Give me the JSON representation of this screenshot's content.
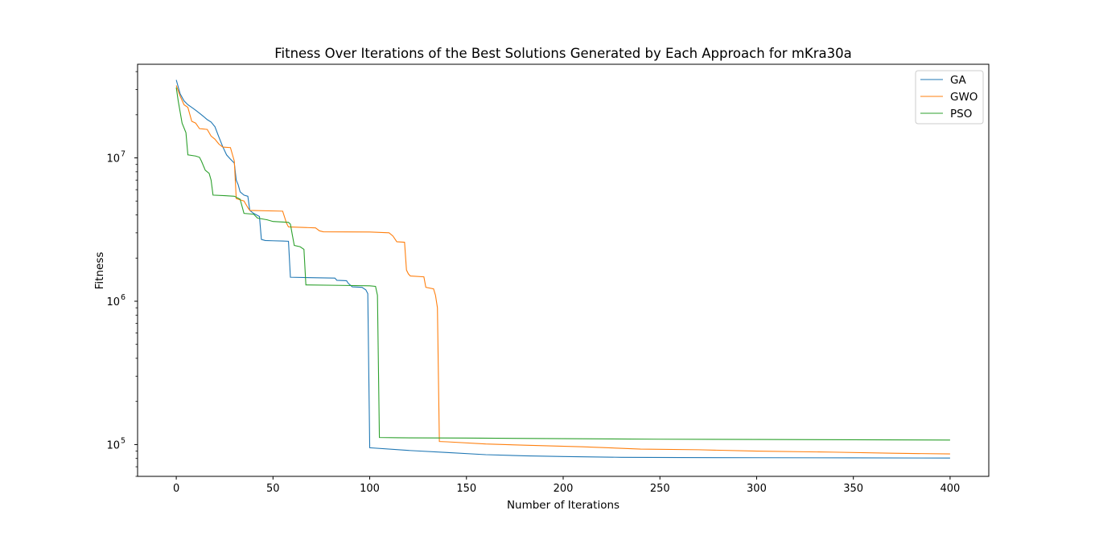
{
  "chart_data": {
    "type": "line",
    "title": "Fitness Over Iterations of the Best Solutions Generated by Each Approach for mKra30a",
    "xlabel": "Number of Iterations",
    "ylabel": "Fitness",
    "xlim": [
      -20,
      420
    ],
    "ylim": [
      60000,
      45000000
    ],
    "yscale": "log",
    "xticks": [
      0,
      50,
      100,
      150,
      200,
      250,
      300,
      350,
      400
    ],
    "xtick_labels": [
      "0",
      "50",
      "100",
      "150",
      "200",
      "250",
      "300",
      "350",
      "400"
    ],
    "yticks": [
      100000,
      1000000,
      10000000
    ],
    "ytick_labels": [
      {
        "base": "10",
        "exp": "5"
      },
      {
        "base": "10",
        "exp": "6"
      },
      {
        "base": "10",
        "exp": "7"
      }
    ],
    "grid": false,
    "legend": "top-right",
    "series": [
      {
        "name": "GA",
        "color": "#1f77b4",
        "points": [
          [
            0,
            35000000
          ],
          [
            2,
            28000000
          ],
          [
            4,
            25000000
          ],
          [
            6,
            23500000
          ],
          [
            8,
            22500000
          ],
          [
            10,
            21500000
          ],
          [
            12,
            20500000
          ],
          [
            14,
            19500000
          ],
          [
            16,
            18500000
          ],
          [
            18,
            17800000
          ],
          [
            20,
            16500000
          ],
          [
            22,
            14000000
          ],
          [
            24,
            12000000
          ],
          [
            26,
            10500000
          ],
          [
            28,
            9800000
          ],
          [
            30,
            9200000
          ],
          [
            31,
            7000000
          ],
          [
            32,
            6500000
          ],
          [
            33,
            5800000
          ],
          [
            35,
            5500000
          ],
          [
            37,
            5400000
          ],
          [
            38,
            4300000
          ],
          [
            40,
            4100000
          ],
          [
            43,
            3900000
          ],
          [
            44,
            2700000
          ],
          [
            46,
            2650000
          ],
          [
            50,
            2640000
          ],
          [
            55,
            2630000
          ],
          [
            58,
            2620000
          ],
          [
            59,
            1470000
          ],
          [
            70,
            1460000
          ],
          [
            82,
            1450000
          ],
          [
            83,
            1400000
          ],
          [
            88,
            1390000
          ],
          [
            89,
            1330000
          ],
          [
            91,
            1260000
          ],
          [
            96,
            1250000
          ],
          [
            98,
            1200000
          ],
          [
            99,
            1130000
          ],
          [
            100,
            95000
          ],
          [
            120,
            91000
          ],
          [
            140,
            88000
          ],
          [
            160,
            85000
          ],
          [
            180,
            83500
          ],
          [
            200,
            82500
          ],
          [
            230,
            81500
          ],
          [
            260,
            81200
          ],
          [
            300,
            81000
          ],
          [
            350,
            80800
          ],
          [
            400,
            80500
          ]
        ]
      },
      {
        "name": "GWO",
        "color": "#ff7f0e",
        "points": [
          [
            0,
            32000000
          ],
          [
            2,
            27000000
          ],
          [
            4,
            23500000
          ],
          [
            6,
            22500000
          ],
          [
            8,
            18000000
          ],
          [
            10,
            17500000
          ],
          [
            12,
            16000000
          ],
          [
            16,
            15800000
          ],
          [
            18,
            14200000
          ],
          [
            20,
            13500000
          ],
          [
            22,
            12500000
          ],
          [
            24,
            11900000
          ],
          [
            28,
            11800000
          ],
          [
            30,
            9500000
          ],
          [
            31,
            5200000
          ],
          [
            33,
            5100000
          ],
          [
            35,
            5000000
          ],
          [
            37,
            4500000
          ],
          [
            38,
            4300000
          ],
          [
            55,
            4250000
          ],
          [
            57,
            3500000
          ],
          [
            58,
            3300000
          ],
          [
            72,
            3250000
          ],
          [
            74,
            3100000
          ],
          [
            76,
            3050000
          ],
          [
            100,
            3040000
          ],
          [
            110,
            3000000
          ],
          [
            112,
            2850000
          ],
          [
            114,
            2600000
          ],
          [
            118,
            2580000
          ],
          [
            119,
            1650000
          ],
          [
            120,
            1550000
          ],
          [
            121,
            1500000
          ],
          [
            128,
            1480000
          ],
          [
            129,
            1250000
          ],
          [
            133,
            1220000
          ],
          [
            134,
            1100000
          ],
          [
            135,
            900000
          ],
          [
            136,
            105000
          ],
          [
            140,
            104500
          ],
          [
            160,
            101000
          ],
          [
            180,
            99000
          ],
          [
            210,
            96500
          ],
          [
            240,
            93000
          ],
          [
            270,
            92000
          ],
          [
            300,
            90000
          ],
          [
            340,
            88500
          ],
          [
            370,
            87000
          ],
          [
            400,
            86000
          ]
        ]
      },
      {
        "name": "PSO",
        "color": "#2ca02c",
        "points": [
          [
            0,
            31000000
          ],
          [
            1,
            25000000
          ],
          [
            3,
            17500000
          ],
          [
            5,
            15000000
          ],
          [
            6,
            10500000
          ],
          [
            10,
            10300000
          ],
          [
            12,
            10100000
          ],
          [
            13,
            9500000
          ],
          [
            15,
            8200000
          ],
          [
            17,
            7800000
          ],
          [
            18,
            7000000
          ],
          [
            19,
            5500000
          ],
          [
            25,
            5450000
          ],
          [
            30,
            5400000
          ],
          [
            33,
            5150000
          ],
          [
            35,
            4100000
          ],
          [
            40,
            4050000
          ],
          [
            42,
            3800000
          ],
          [
            47,
            3700000
          ],
          [
            50,
            3600000
          ],
          [
            58,
            3550000
          ],
          [
            59,
            3450000
          ],
          [
            60,
            2900000
          ],
          [
            61,
            2450000
          ],
          [
            64,
            2400000
          ],
          [
            66,
            2300000
          ],
          [
            67,
            1300000
          ],
          [
            85,
            1290000
          ],
          [
            100,
            1280000
          ],
          [
            103,
            1270000
          ],
          [
            104,
            1100000
          ],
          [
            105,
            112000
          ],
          [
            115,
            111500
          ],
          [
            150,
            111000
          ],
          [
            200,
            110000
          ],
          [
            250,
            109000
          ],
          [
            300,
            108500
          ],
          [
            350,
            108000
          ],
          [
            400,
            107500
          ]
        ]
      }
    ]
  }
}
